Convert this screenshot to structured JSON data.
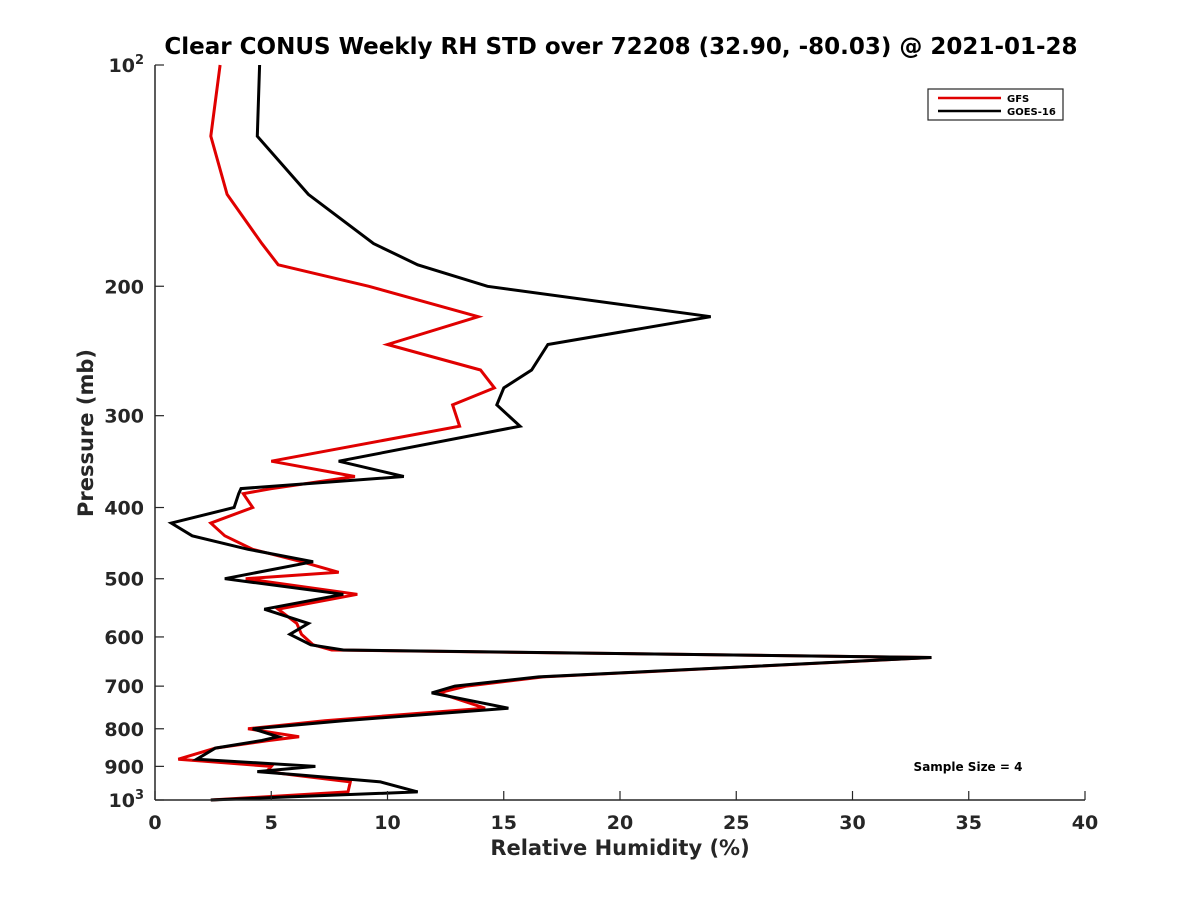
{
  "chart_data": {
    "type": "line",
    "title": "Clear CONUS Weekly RH STD over 72208 (32.90, -80.03) @ 2021-01-28",
    "xlabel": "Relative Humidity (%)",
    "ylabel": "Pressure (mb)",
    "xlim": [
      0,
      40
    ],
    "ylim": [
      100,
      1000
    ],
    "yscale": "log",
    "y_reversed": true,
    "grid": false,
    "legend_position": "top-right",
    "x_ticks": [
      "0",
      "5",
      "10",
      "15",
      "20",
      "25",
      "30",
      "35",
      "40"
    ],
    "y_ticks": [
      {
        "value": 100,
        "base": "10",
        "exp": "2"
      },
      {
        "value": 200,
        "label": "200"
      },
      {
        "value": 300,
        "label": "300"
      },
      {
        "value": 400,
        "label": "400"
      },
      {
        "value": 500,
        "label": "500"
      },
      {
        "value": 600,
        "label": "600"
      },
      {
        "value": 700,
        "label": "700"
      },
      {
        "value": 800,
        "label": "800"
      },
      {
        "value": 900,
        "label": "900"
      },
      {
        "value": 1000,
        "base": "10",
        "exp": "3"
      }
    ],
    "series": [
      {
        "name": "GFS",
        "color": "#e00000",
        "points": [
          [
            2.8,
            100
          ],
          [
            2.4,
            125
          ],
          [
            3.1,
            150
          ],
          [
            4.6,
            175
          ],
          [
            5.3,
            187
          ],
          [
            9.2,
            200
          ],
          [
            13.9,
            220
          ],
          [
            10.0,
            240
          ],
          [
            14.0,
            260
          ],
          [
            14.6,
            275
          ],
          [
            12.8,
            290
          ],
          [
            13.1,
            310
          ],
          [
            5.0,
            346
          ],
          [
            8.6,
            363
          ],
          [
            5.0,
            377
          ],
          [
            3.8,
            383
          ],
          [
            4.2,
            400
          ],
          [
            2.4,
            420
          ],
          [
            3.0,
            437
          ],
          [
            4.2,
            456
          ],
          [
            6.3,
            474
          ],
          [
            7.9,
            490
          ],
          [
            3.9,
            500
          ],
          [
            8.7,
            525
          ],
          [
            5.3,
            550
          ],
          [
            6.1,
            575
          ],
          [
            6.3,
            595
          ],
          [
            6.8,
            615
          ],
          [
            7.6,
            625
          ],
          [
            33.4,
            640
          ],
          [
            16.7,
            680
          ],
          [
            13.4,
            700
          ],
          [
            12.2,
            715
          ],
          [
            14.2,
            750
          ],
          [
            7.3,
            780
          ],
          [
            4.0,
            800
          ],
          [
            6.2,
            820
          ],
          [
            4.9,
            830
          ],
          [
            2.6,
            850
          ],
          [
            1.0,
            880
          ],
          [
            5.0,
            900
          ],
          [
            4.8,
            915
          ],
          [
            6.0,
            925
          ],
          [
            8.4,
            945
          ],
          [
            8.3,
            975
          ],
          [
            2.4,
            1000
          ]
        ]
      },
      {
        "name": "GOES-16",
        "color": "#000000",
        "points": [
          [
            4.5,
            100
          ],
          [
            4.4,
            125
          ],
          [
            6.6,
            150
          ],
          [
            9.4,
            175
          ],
          [
            11.3,
            187
          ],
          [
            14.3,
            200
          ],
          [
            23.9,
            220
          ],
          [
            16.9,
            240
          ],
          [
            16.2,
            260
          ],
          [
            15.0,
            275
          ],
          [
            14.7,
            290
          ],
          [
            15.7,
            310
          ],
          [
            7.9,
            346
          ],
          [
            10.7,
            363
          ],
          [
            3.7,
            377
          ],
          [
            3.6,
            383
          ],
          [
            3.4,
            400
          ],
          [
            0.7,
            420
          ],
          [
            1.6,
            437
          ],
          [
            4.0,
            456
          ],
          [
            6.8,
            474
          ],
          [
            3.0,
            500
          ],
          [
            8.1,
            525
          ],
          [
            4.7,
            550
          ],
          [
            6.6,
            575
          ],
          [
            5.8,
            595
          ],
          [
            6.7,
            615
          ],
          [
            8.1,
            625
          ],
          [
            33.4,
            640
          ],
          [
            16.5,
            680
          ],
          [
            12.9,
            700
          ],
          [
            11.9,
            715
          ],
          [
            15.2,
            750
          ],
          [
            8.1,
            780
          ],
          [
            4.2,
            800
          ],
          [
            5.3,
            820
          ],
          [
            4.6,
            830
          ],
          [
            2.6,
            850
          ],
          [
            1.8,
            880
          ],
          [
            6.9,
            900
          ],
          [
            4.4,
            915
          ],
          [
            6.3,
            925
          ],
          [
            9.7,
            945
          ],
          [
            11.3,
            975
          ],
          [
            2.4,
            1000
          ]
        ]
      }
    ],
    "annotation": "Sample Size = 4"
  }
}
